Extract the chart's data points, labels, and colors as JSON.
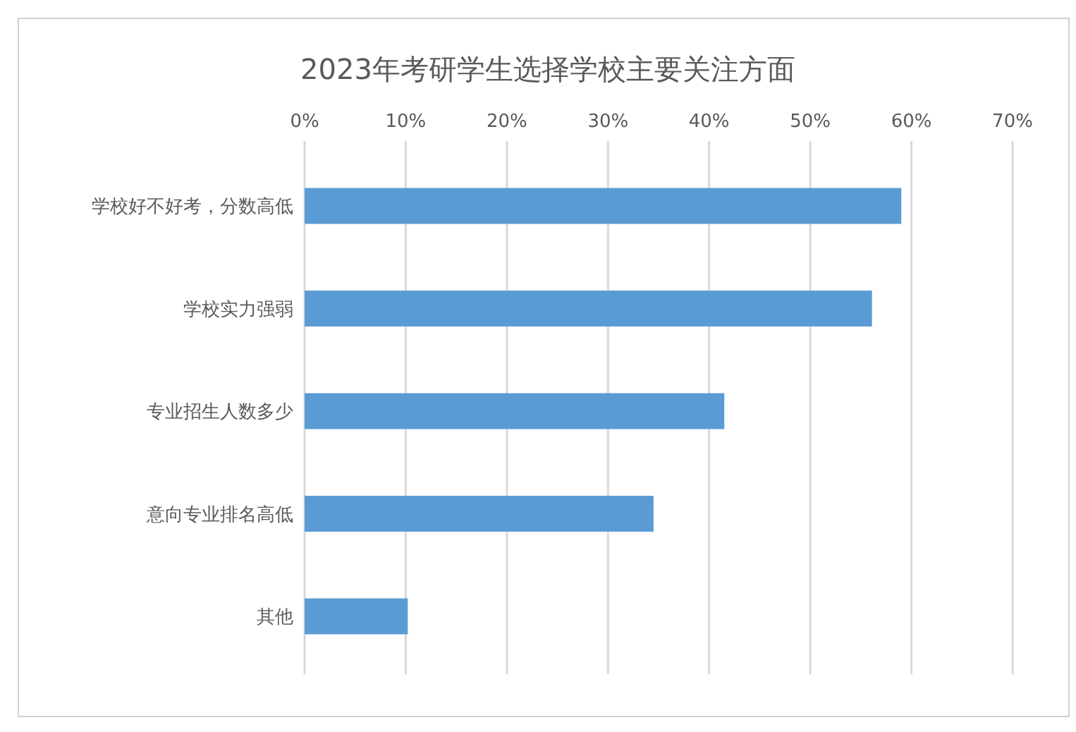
{
  "chart_data": {
    "type": "bar",
    "orientation": "horizontal",
    "title": "2023年考研学生选择学校主要关注方面",
    "categories": [
      "学校好不好考，分数高低",
      "学校实力强弱",
      "专业招生人数多少",
      "意向专业排名高低",
      "其他"
    ],
    "values": [
      59,
      56.1,
      41.5,
      34.5,
      10.2
    ],
    "color": "#5b9bd5",
    "xlim": [
      0,
      70
    ],
    "xticks": [
      {
        "value": 0,
        "label": "0%"
      },
      {
        "value": 10,
        "label": "10%"
      },
      {
        "value": 20,
        "label": "20%"
      },
      {
        "value": 30,
        "label": "30%"
      },
      {
        "value": 40,
        "label": "40%"
      },
      {
        "value": 50,
        "label": "50%"
      },
      {
        "value": 60,
        "label": "60%"
      },
      {
        "value": 70,
        "label": "70%"
      }
    ],
    "grid": "x"
  }
}
